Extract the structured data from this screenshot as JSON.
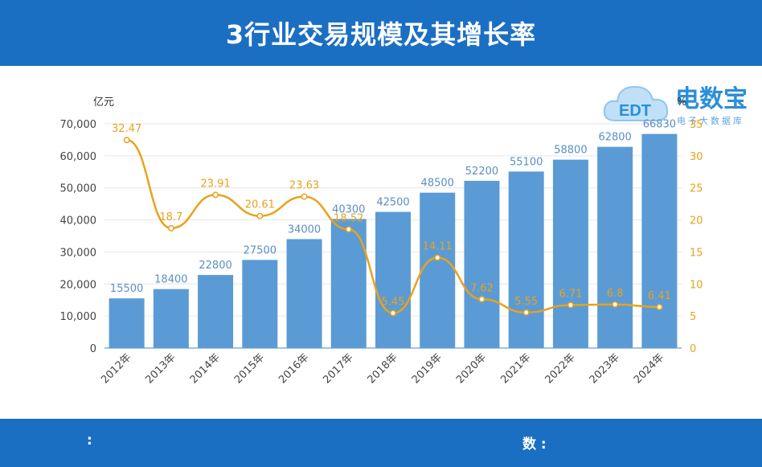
{
  "header": {
    "title": "3行业交易规模及其增长率"
  },
  "footer": {
    "left_label": ":",
    "right_label": "数 :"
  },
  "watermark": {
    "main_text": "电数宝",
    "sub_text": "电子大数据库",
    "logo_text": "EDT"
  },
  "chart_data": {
    "type": "bar",
    "categories": [
      "2012年",
      "2013年",
      "2014年",
      "2015年",
      "2016年",
      "2017年",
      "2018年",
      "2019年",
      "2020年",
      "2021年",
      "2022年",
      "2023年",
      "2024年"
    ],
    "series": [
      {
        "type": "bar",
        "values": [
          15500,
          18400,
          22800,
          27500,
          34000,
          40300,
          42500,
          48500,
          52200,
          55100,
          58800,
          62800,
          66830
        ]
      },
      {
        "type": "line",
        "values": [
          32.47,
          18.7,
          23.91,
          20.61,
          23.63,
          18.52,
          5.45,
          14.11,
          7.62,
          5.55,
          6.71,
          6.8,
          6.41
        ]
      }
    ],
    "ylabel": "亿元",
    "ylabel_right": "%",
    "ylim": [
      0,
      70000
    ],
    "ylim_right": [
      0,
      35
    ],
    "y_ticks": [
      "0",
      "10,000",
      "20,000",
      "30,000",
      "40,000",
      "50,000",
      "60,000",
      "70,000"
    ],
    "y_ticks_right": [
      "0",
      "5",
      "10",
      "15",
      "20",
      "25",
      "30",
      "35"
    ],
    "colors": {
      "bar": "#5b9bd5",
      "line": "#e9a21b",
      "header": "#1b6fc2"
    },
    "grid": true
  }
}
